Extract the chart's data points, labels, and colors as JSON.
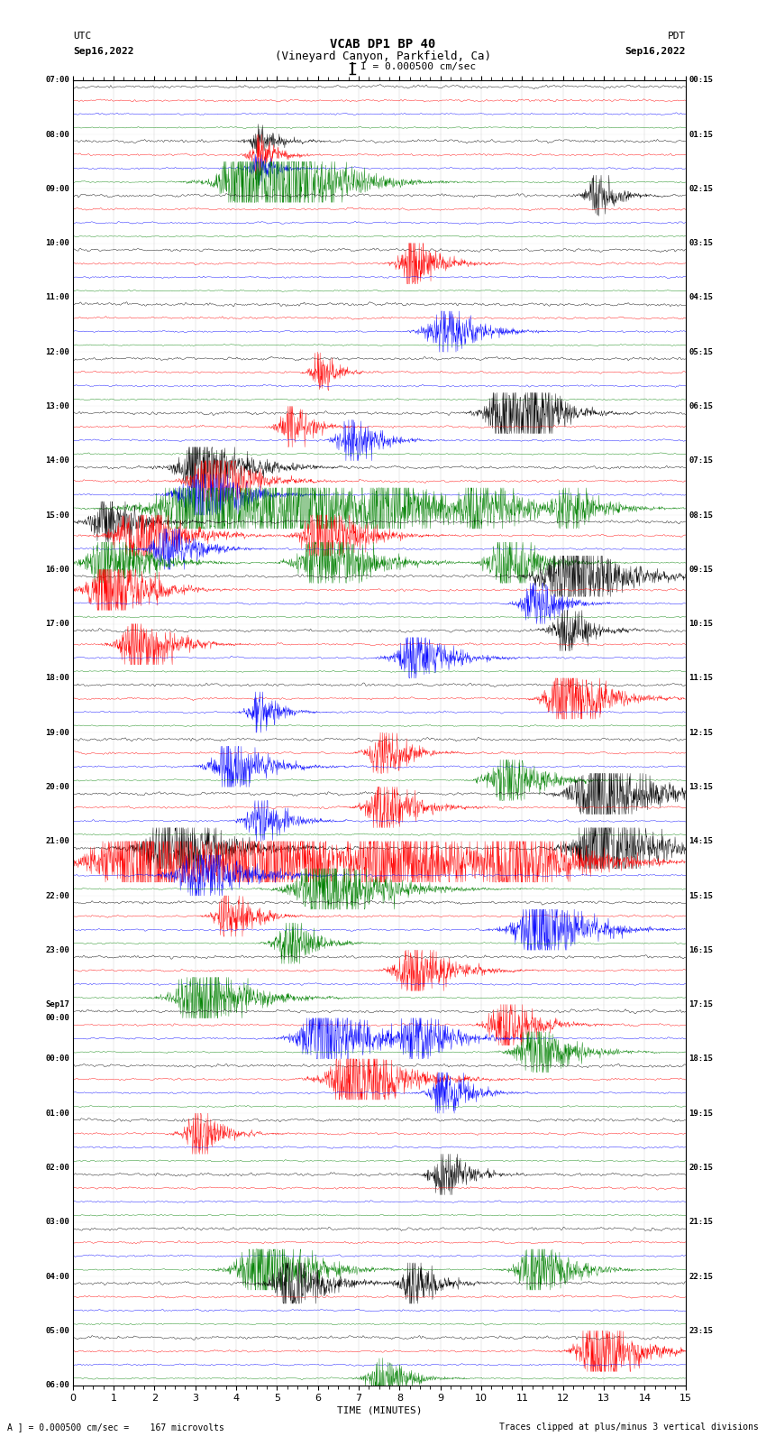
{
  "title_line1": "VCAB DP1 BP 40",
  "title_line2": "(Vineyard Canyon, Parkfield, Ca)",
  "scale_text": "I = 0.000500 cm/sec",
  "utc_label": "UTC",
  "utc_date": "Sep16,2022",
  "pdt_label": "PDT",
  "pdt_date": "Sep16,2022",
  "xlabel": "TIME (MINUTES)",
  "footer_left": "A ] = 0.000500 cm/sec =    167 microvolts",
  "footer_right": "Traces clipped at plus/minus 3 vertical divisions",
  "bg_color": "#ffffff",
  "trace_colors": [
    "black",
    "red",
    "blue",
    "green"
  ],
  "n_points": 1800,
  "fig_width": 8.5,
  "fig_height": 16.13,
  "dpi": 100,
  "n_hours": 24,
  "left_labels": [
    "07:00",
    "08:00",
    "09:00",
    "10:00",
    "11:00",
    "12:00",
    "13:00",
    "14:00",
    "15:00",
    "16:00",
    "17:00",
    "18:00",
    "19:00",
    "20:00",
    "21:00",
    "22:00",
    "23:00",
    "Sep17",
    "00:00",
    "01:00",
    "02:00",
    "03:00",
    "04:00",
    "05:00",
    "06:00"
  ],
  "right_labels": [
    "00:15",
    "01:15",
    "02:15",
    "03:15",
    "04:15",
    "05:15",
    "06:15",
    "07:15",
    "08:15",
    "09:15",
    "10:15",
    "11:15",
    "12:15",
    "13:15",
    "14:15",
    "15:15",
    "16:15",
    "17:15",
    "18:15",
    "19:15",
    "20:15",
    "21:15",
    "22:15",
    "23:15"
  ]
}
